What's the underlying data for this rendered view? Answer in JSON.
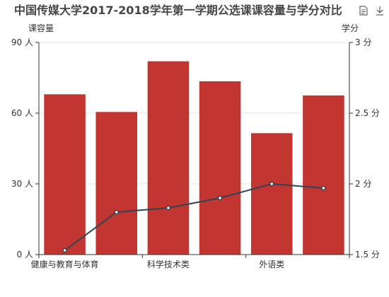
{
  "chart_data": {
    "type": "bar+line",
    "title": "中国传媒大学2017-2018学年第一学期公选课课容量与学分对比",
    "categories": [
      "健康与教育与体育",
      "",
      "科学技术类",
      "",
      "外语类",
      ""
    ],
    "x_tick_labels": [
      "健康与教育与体育",
      "科学技术类",
      "外语类"
    ],
    "y_left": {
      "name": "课容量",
      "min": 0,
      "max": 90,
      "ticks": [
        "0 人",
        "30 人",
        "60 人",
        "90 人"
      ]
    },
    "y_right": {
      "name": "学分",
      "min": 1.5,
      "max": 3,
      "ticks": [
        "1.5 分",
        "2 分",
        "2.5 分",
        "3 分"
      ]
    },
    "series": [
      {
        "type": "bar",
        "axis": "left",
        "values": [
          68,
          60.5,
          82,
          73.5,
          51.5,
          67.5
        ]
      },
      {
        "type": "line",
        "axis": "right",
        "values": [
          1.53,
          1.8,
          1.83,
          1.9,
          2.0,
          1.97
        ]
      }
    ],
    "grid": true,
    "colors": {
      "bar": "#c23531",
      "line": "#2f4554",
      "grid": "#e0e6f1",
      "axis": "#333333"
    },
    "toolbox": [
      "data-view-icon",
      "download-icon"
    ]
  }
}
